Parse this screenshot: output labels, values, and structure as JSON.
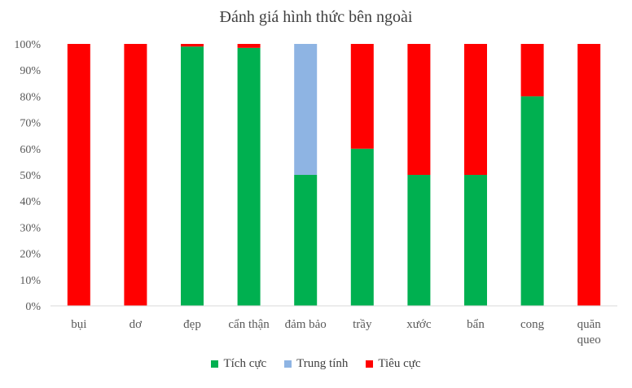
{
  "chart_data": {
    "type": "bar",
    "stacked": true,
    "normalized": true,
    "title": "Đánh giá hình thức bên ngoài",
    "xlabel": "",
    "ylabel": "",
    "ylim": [
      0,
      1
    ],
    "y_ticks": [
      "0%",
      "10%",
      "20%",
      "30%",
      "40%",
      "50%",
      "60%",
      "70%",
      "80%",
      "90%",
      "100%"
    ],
    "categories": [
      "bụi",
      "dơ",
      "đẹp",
      "cẩn thận",
      "đảm bảo",
      "trầy",
      "xước",
      "bẩn",
      "cong",
      "quăn queo"
    ],
    "series": [
      {
        "name": "Tích cực",
        "color": "#00b050",
        "values": [
          0,
          0,
          0.99,
          0.985,
          0.5,
          0.6,
          0.5,
          0.5,
          0.8,
          0
        ]
      },
      {
        "name": "Trung tính",
        "color": "#8eb4e3",
        "values": [
          0,
          0,
          0,
          0,
          0.5,
          0,
          0,
          0,
          0,
          0
        ]
      },
      {
        "name": "Tiêu cực",
        "color": "#ff0000",
        "values": [
          1,
          1,
          0.01,
          0.015,
          0,
          0.4,
          0.5,
          0.5,
          0.2,
          1
        ]
      }
    ],
    "grid": false,
    "legend_position": "bottom"
  }
}
